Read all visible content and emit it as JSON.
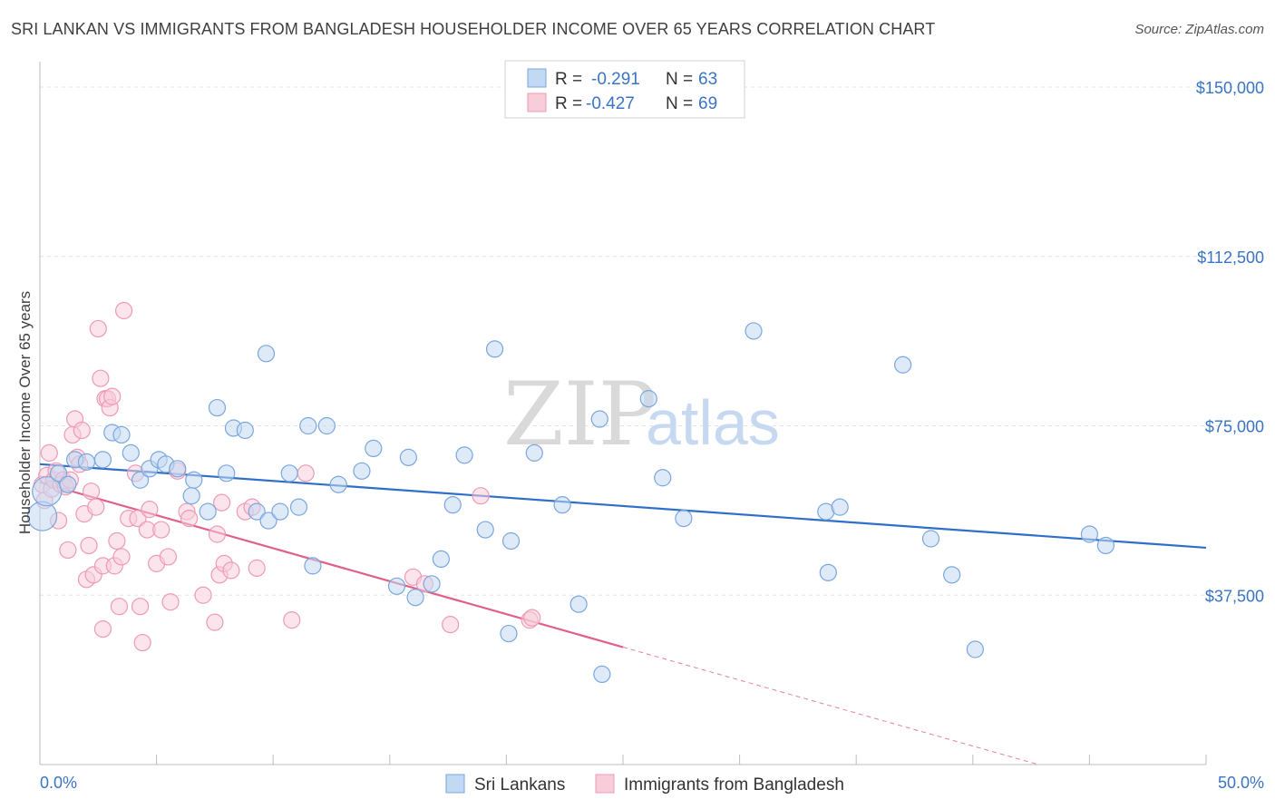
{
  "title": "SRI LANKAN VS IMMIGRANTS FROM BANGLADESH HOUSEHOLDER INCOME OVER 65 YEARS CORRELATION CHART",
  "source": "Source: ZipAtlas.com",
  "watermark": {
    "zip": "ZIP",
    "atlas": "atlas"
  },
  "chart_data": {
    "type": "scatter",
    "xlabel": "",
    "ylabel": "Householder Income Over 65 years",
    "xlim": [
      0,
      50
    ],
    "ylim": [
      0,
      155000
    ],
    "x_tick_labels": [
      "0.0%",
      "50.0%"
    ],
    "y_tick_values": [
      37500,
      75000,
      112500,
      150000
    ],
    "y_tick_labels": [
      "$37,500",
      "$75,000",
      "$112,500",
      "$150,000"
    ],
    "grid": true,
    "legend_position": "top-center",
    "series": [
      {
        "name": "Sri Lankans",
        "color": "#7aa7dd",
        "fill": "#c3d8f2",
        "line_color": "#2f6fc9",
        "R": "-0.291",
        "N": "63",
        "trend": {
          "x0": 0,
          "y0": 66500,
          "x1": 50,
          "y1": 48000
        },
        "points": [
          [
            0.1,
            55000
          ],
          [
            0.3,
            60500
          ],
          [
            0.8,
            64500
          ],
          [
            1.2,
            62000
          ],
          [
            1.5,
            67500
          ],
          [
            2.0,
            67000
          ],
          [
            2.7,
            67500
          ],
          [
            3.1,
            73500
          ],
          [
            3.5,
            73000
          ],
          [
            3.9,
            69000
          ],
          [
            4.3,
            63000
          ],
          [
            4.7,
            65500
          ],
          [
            5.1,
            67500
          ],
          [
            5.4,
            66500
          ],
          [
            5.9,
            65500
          ],
          [
            6.5,
            59500
          ],
          [
            6.6,
            63000
          ],
          [
            7.2,
            56000
          ],
          [
            7.6,
            79000
          ],
          [
            8.0,
            64500
          ],
          [
            8.3,
            74500
          ],
          [
            8.8,
            74000
          ],
          [
            9.3,
            56000
          ],
          [
            9.7,
            91000
          ],
          [
            9.8,
            54000
          ],
          [
            10.3,
            56000
          ],
          [
            10.7,
            64500
          ],
          [
            11.1,
            57000
          ],
          [
            11.5,
            75000
          ],
          [
            11.7,
            44000
          ],
          [
            12.3,
            75000
          ],
          [
            12.8,
            62000
          ],
          [
            13.8,
            65000
          ],
          [
            14.3,
            70000
          ],
          [
            15.3,
            39500
          ],
          [
            15.8,
            68000
          ],
          [
            16.1,
            37000
          ],
          [
            16.8,
            40000
          ],
          [
            17.2,
            45500
          ],
          [
            17.7,
            57500
          ],
          [
            18.2,
            68500
          ],
          [
            19.1,
            52000
          ],
          [
            19.5,
            92000
          ],
          [
            20.1,
            29000
          ],
          [
            20.2,
            49500
          ],
          [
            21.2,
            69000
          ],
          [
            22.4,
            57500
          ],
          [
            23.1,
            35500
          ],
          [
            24.0,
            76500
          ],
          [
            24.1,
            20000
          ],
          [
            26.1,
            81000
          ],
          [
            26.7,
            63500
          ],
          [
            27.6,
            54500
          ],
          [
            30.6,
            96000
          ],
          [
            33.7,
            56000
          ],
          [
            33.8,
            42500
          ],
          [
            34.3,
            57000
          ],
          [
            37.0,
            88500
          ],
          [
            38.2,
            50000
          ],
          [
            39.1,
            42000
          ],
          [
            40.1,
            25500
          ],
          [
            45.0,
            51000
          ],
          [
            45.7,
            48500
          ]
        ]
      },
      {
        "name": "Immigrants from Bangladesh",
        "color": "#ee9ab6",
        "fill": "#f8cdda",
        "line_color": "#e0608a",
        "R": "-0.427",
        "N": "69",
        "trend": {
          "x0": 0,
          "y0": 62500,
          "x1": 25,
          "y1": 26000,
          "dash_to_x": 50,
          "dash_to_y": -10500
        },
        "points": [
          [
            0.1,
            62000
          ],
          [
            0.2,
            58500
          ],
          [
            0.3,
            64000
          ],
          [
            0.4,
            69000
          ],
          [
            0.5,
            61000
          ],
          [
            0.6,
            63000
          ],
          [
            0.7,
            65000
          ],
          [
            0.8,
            54000
          ],
          [
            0.9,
            62000
          ],
          [
            1.0,
            63000
          ],
          [
            1.1,
            61500
          ],
          [
            1.2,
            47500
          ],
          [
            1.3,
            63000
          ],
          [
            1.4,
            73000
          ],
          [
            1.5,
            76500
          ],
          [
            1.6,
            68000
          ],
          [
            1.7,
            66500
          ],
          [
            1.8,
            74000
          ],
          [
            1.9,
            55500
          ],
          [
            2.0,
            41000
          ],
          [
            2.1,
            48500
          ],
          [
            2.2,
            60500
          ],
          [
            2.3,
            42000
          ],
          [
            2.4,
            57000
          ],
          [
            2.5,
            96500
          ],
          [
            2.6,
            85500
          ],
          [
            2.7,
            44000
          ],
          [
            2.7,
            30000
          ],
          [
            2.8,
            81000
          ],
          [
            2.9,
            81000
          ],
          [
            3.0,
            79000
          ],
          [
            3.1,
            81500
          ],
          [
            3.2,
            44000
          ],
          [
            3.3,
            49500
          ],
          [
            3.4,
            35000
          ],
          [
            3.5,
            46000
          ],
          [
            3.6,
            100500
          ],
          [
            3.8,
            54500
          ],
          [
            4.1,
            64500
          ],
          [
            4.2,
            54500
          ],
          [
            4.3,
            35000
          ],
          [
            4.4,
            27000
          ],
          [
            4.6,
            52000
          ],
          [
            4.7,
            56500
          ],
          [
            5.0,
            44500
          ],
          [
            5.2,
            52000
          ],
          [
            5.5,
            46000
          ],
          [
            5.6,
            36000
          ],
          [
            5.9,
            65000
          ],
          [
            6.3,
            56000
          ],
          [
            6.4,
            54500
          ],
          [
            7.0,
            37500
          ],
          [
            7.5,
            31500
          ],
          [
            7.6,
            51000
          ],
          [
            7.7,
            42000
          ],
          [
            7.8,
            58000
          ],
          [
            7.9,
            44500
          ],
          [
            8.2,
            43000
          ],
          [
            8.8,
            56000
          ],
          [
            9.1,
            57000
          ],
          [
            9.3,
            43500
          ],
          [
            10.8,
            32000
          ],
          [
            11.4,
            64500
          ],
          [
            16.0,
            41500
          ],
          [
            16.5,
            40000
          ],
          [
            17.6,
            31000
          ],
          [
            18.9,
            59500
          ],
          [
            21.0,
            32000
          ],
          [
            21.1,
            32500
          ]
        ]
      }
    ]
  }
}
